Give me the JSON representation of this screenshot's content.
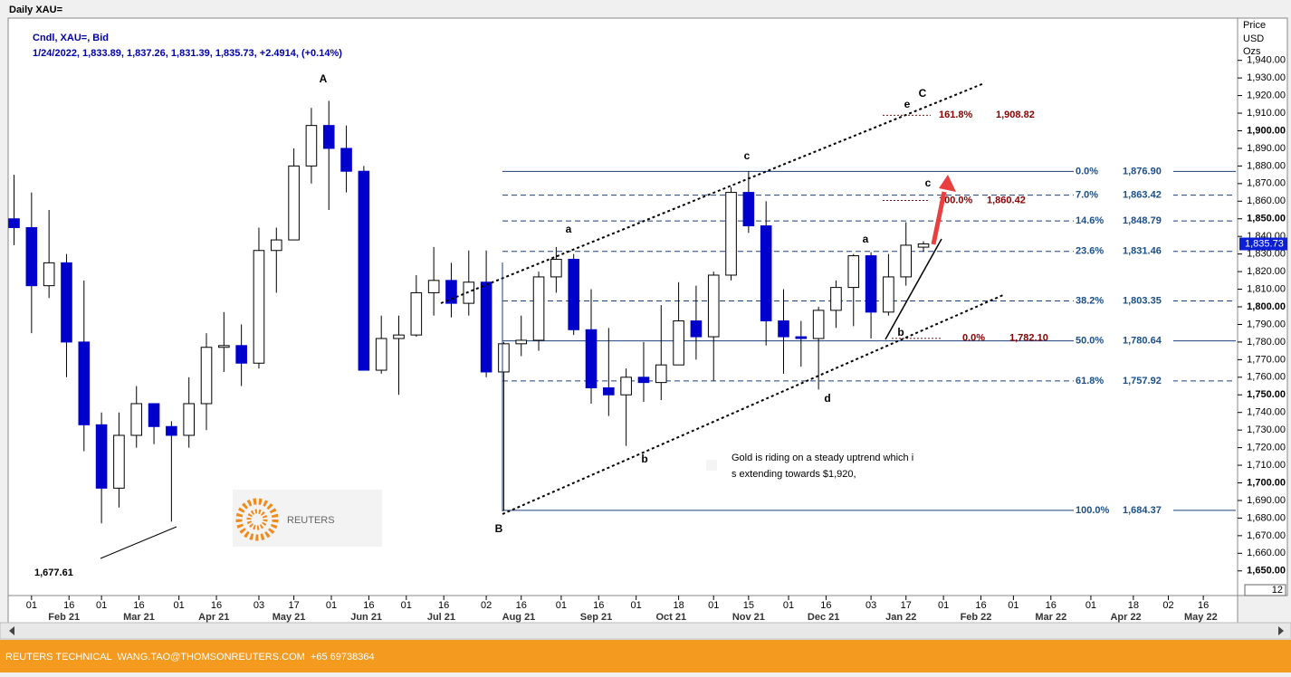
{
  "chart_data": {
    "type": "candlestick",
    "title": "Daily XAU=",
    "subtitle": "Cndl, XAU=, Bid",
    "ohlc_line": "1/24/2022, 1,833.89, 1,837.26, 1,831.39, 1,835.73, +2.4914, (+0.14%)",
    "y_axis_label": [
      "Price",
      "USD",
      "Ozs"
    ],
    "x": [
      "2021-01-25",
      "2021-02-01",
      "2021-02-08",
      "2021-02-15",
      "2021-02-22",
      "2021-03-01",
      "2021-03-08",
      "2021-03-15",
      "2021-03-22",
      "2021-03-29",
      "2021-04-05",
      "2021-04-12",
      "2021-04-19",
      "2021-04-26",
      "2021-05-03",
      "2021-05-10",
      "2021-05-17",
      "2021-05-24",
      "2021-05-31",
      "2021-06-07",
      "2021-06-14",
      "2021-06-21",
      "2021-06-28",
      "2021-07-05",
      "2021-07-12",
      "2021-07-19",
      "2021-07-26",
      "2021-08-02",
      "2021-08-09",
      "2021-08-16",
      "2021-08-23",
      "2021-08-30",
      "2021-09-06",
      "2021-09-13",
      "2021-09-20",
      "2021-09-27",
      "2021-10-04",
      "2021-10-11",
      "2021-10-18",
      "2021-10-25",
      "2021-11-01",
      "2021-11-08",
      "2021-11-15",
      "2021-11-22",
      "2021-11-29",
      "2021-12-06",
      "2021-12-13",
      "2021-12-20",
      "2021-12-27",
      "2022-01-03",
      "2022-01-10",
      "2022-01-17",
      "2022-01-24"
    ],
    "open": [
      1850,
      1845,
      1812,
      1825,
      1780,
      1733,
      1697,
      1727,
      1745,
      1732,
      1727,
      1745,
      1777,
      1778,
      1768,
      1832,
      1838,
      1880,
      1903,
      1890,
      1877,
      1764,
      1782,
      1784,
      1808,
      1815,
      1802,
      1814,
      1763,
      1779,
      1781,
      1817,
      1827,
      1787,
      1754,
      1750,
      1760,
      1757,
      1767,
      1792,
      1783,
      1818,
      1865,
      1846,
      1792,
      1783,
      1782,
      1798,
      1811,
      1829,
      1797,
      1817,
      1833.89
    ],
    "high": [
      1875,
      1865,
      1855,
      1830,
      1815,
      1740,
      1740,
      1755,
      1745,
      1735,
      1760,
      1785,
      1797,
      1790,
      1845,
      1845,
      1890,
      1913,
      1917,
      1903,
      1880,
      1795,
      1795,
      1818,
      1834,
      1825,
      1832,
      1832,
      1780,
      1795,
      1820,
      1834,
      1830,
      1810,
      1788,
      1765,
      1780,
      1801,
      1814,
      1812,
      1820,
      1868,
      1877,
      1860,
      1810,
      1792,
      1800,
      1815,
      1830,
      1831,
      1830,
      1848,
      1837.26
    ],
    "low": [
      1835,
      1785,
      1805,
      1760,
      1718,
      1677,
      1686,
      1720,
      1722,
      1678,
      1720,
      1730,
      1763,
      1755,
      1765,
      1808,
      1838,
      1870,
      1855,
      1865,
      1765,
      1762,
      1750,
      1783,
      1795,
      1794,
      1795,
      1760,
      1684,
      1772,
      1775,
      1808,
      1784,
      1745,
      1738,
      1721,
      1746,
      1747,
      1767,
      1770,
      1758,
      1815,
      1842,
      1778,
      1762,
      1766,
      1753,
      1788,
      1789,
      1782,
      1795,
      1812,
      1831.39
    ],
    "close": [
      1845,
      1812,
      1825,
      1780,
      1733,
      1697,
      1727,
      1745,
      1732,
      1727,
      1745,
      1777,
      1778,
      1768,
      1832,
      1838,
      1880,
      1903,
      1890,
      1877,
      1764,
      1782,
      1784,
      1808,
      1815,
      1802,
      1814,
      1763,
      1779,
      1781,
      1817,
      1827,
      1787,
      1754,
      1750,
      1760,
      1757,
      1767,
      1792,
      1783,
      1818,
      1865,
      1846,
      1792,
      1783,
      1782,
      1798,
      1811,
      1829,
      1797,
      1817,
      1835,
      1835.73
    ],
    "up_color": "#ffffff",
    "down_color": "#0000cc",
    "xlim": [
      "2021-01-23",
      "2022-05-29"
    ],
    "xticks": [
      {
        "value": "2021-02-01",
        "label": "01"
      },
      {
        "value": "2021-02-16",
        "label": "16"
      },
      {
        "value": "2021-03-01",
        "label": "01"
      },
      {
        "value": "2021-03-16",
        "label": "16"
      },
      {
        "value": "2021-04-01",
        "label": "01"
      },
      {
        "value": "2021-04-16",
        "label": "16"
      },
      {
        "value": "2021-05-03",
        "label": "03"
      },
      {
        "value": "2021-05-17",
        "label": "17"
      },
      {
        "value": "2021-06-01",
        "label": "01"
      },
      {
        "value": "2021-06-16",
        "label": "16"
      },
      {
        "value": "2021-07-01",
        "label": "01"
      },
      {
        "value": "2021-07-16",
        "label": "16"
      },
      {
        "value": "2021-08-02",
        "label": "02"
      },
      {
        "value": "2021-08-16",
        "label": "16"
      },
      {
        "value": "2021-09-01",
        "label": "01"
      },
      {
        "value": "2021-09-16",
        "label": "16"
      },
      {
        "value": "2021-10-01",
        "label": "01"
      },
      {
        "value": "2021-10-18",
        "label": "18"
      },
      {
        "value": "2021-11-01",
        "label": "01"
      },
      {
        "value": "2021-11-15",
        "label": "15"
      },
      {
        "value": "2021-12-01",
        "label": "01"
      },
      {
        "value": "2021-12-16",
        "label": "16"
      },
      {
        "value": "2022-01-03",
        "label": "03"
      },
      {
        "value": "2022-01-17",
        "label": "17"
      },
      {
        "value": "2022-02-01",
        "label": "01"
      },
      {
        "value": "2022-02-16",
        "label": "16"
      },
      {
        "value": "2022-03-01",
        "label": "01"
      },
      {
        "value": "2022-03-16",
        "label": "16"
      },
      {
        "value": "2022-04-01",
        "label": "01"
      },
      {
        "value": "2022-04-18",
        "label": "18"
      },
      {
        "value": "2022-05-02",
        "label": "02"
      },
      {
        "value": "2022-05-16",
        "label": "16"
      }
    ],
    "month_labels": [
      {
        "value": "2021-02-14",
        "label": "Feb 21"
      },
      {
        "value": "2021-03-16",
        "label": "Mar 21"
      },
      {
        "value": "2021-04-15",
        "label": "Apr 21"
      },
      {
        "value": "2021-05-15",
        "label": "May 21"
      },
      {
        "value": "2021-06-15",
        "label": "Jun 21"
      },
      {
        "value": "2021-07-15",
        "label": "Jul 21"
      },
      {
        "value": "2021-08-15",
        "label": "Aug 21"
      },
      {
        "value": "2021-09-15",
        "label": "Sep 21"
      },
      {
        "value": "2021-10-15",
        "label": "Oct 21"
      },
      {
        "value": "2021-11-15",
        "label": "Nov 21"
      },
      {
        "value": "2021-12-15",
        "label": "Dec 21"
      },
      {
        "value": "2022-01-15",
        "label": "Jan 22"
      },
      {
        "value": "2022-02-14",
        "label": "Feb 22"
      },
      {
        "value": "2022-03-16",
        "label": "Mar 22"
      },
      {
        "value": "2022-04-15",
        "label": "Apr 22"
      },
      {
        "value": "2022-05-15",
        "label": "May 22"
      }
    ],
    "ylim": [
      1636,
      1964
    ],
    "yticks": [
      {
        "value": 1650,
        "label": "1,650.00"
      },
      {
        "value": 1660,
        "label": "1,660.00"
      },
      {
        "value": 1670,
        "label": "1,670.00"
      },
      {
        "value": 1680,
        "label": "1,680.00"
      },
      {
        "value": 1690,
        "label": "1,690.00"
      },
      {
        "value": 1700,
        "label": "1,700.00"
      },
      {
        "value": 1710,
        "label": "1,710.00"
      },
      {
        "value": 1720,
        "label": "1,720.00"
      },
      {
        "value": 1730,
        "label": "1,730.00"
      },
      {
        "value": 1740,
        "label": "1,740.00"
      },
      {
        "value": 1750,
        "label": "1,750.00"
      },
      {
        "value": 1760,
        "label": "1,760.00"
      },
      {
        "value": 1770,
        "label": "1,770.00"
      },
      {
        "value": 1780,
        "label": "1,780.00"
      },
      {
        "value": 1790,
        "label": "1,790.00"
      },
      {
        "value": 1800,
        "label": "1,800.00"
      },
      {
        "value": 1810,
        "label": "1,810.00"
      },
      {
        "value": 1820,
        "label": "1,820.00"
      },
      {
        "value": 1830,
        "label": "1,830.00"
      },
      {
        "value": 1840,
        "label": "1,840.00"
      },
      {
        "value": 1850,
        "label": "1,850.00"
      },
      {
        "value": 1860,
        "label": "1,860.00"
      },
      {
        "value": 1870,
        "label": "1,870.00"
      },
      {
        "value": 1880,
        "label": "1,880.00"
      },
      {
        "value": 1890,
        "label": "1,890.00"
      },
      {
        "value": 1900,
        "label": "1,900.00"
      },
      {
        "value": 1910,
        "label": "1,910.00"
      },
      {
        "value": 1920,
        "label": "1,920.00"
      },
      {
        "value": 1930,
        "label": "1,930.00"
      },
      {
        "value": 1940,
        "label": "1,940.00"
      }
    ],
    "last_price": {
      "value": 1835.73,
      "label": "1,835.73"
    },
    "fib_levels": [
      {
        "pct": "0.0%",
        "value": 1876.9,
        "label": "1,876.90",
        "solid": true
      },
      {
        "pct": "7.0%",
        "value": 1863.42,
        "label": "1,863.42",
        "solid": false
      },
      {
        "pct": "14.6%",
        "value": 1848.79,
        "label": "1,848.79",
        "solid": false
      },
      {
        "pct": "23.6%",
        "value": 1831.46,
        "label": "1,831.46",
        "solid": false
      },
      {
        "pct": "38.2%",
        "value": 1803.35,
        "label": "1,803.35",
        "solid": false
      },
      {
        "pct": "50.0%",
        "value": 1780.64,
        "label": "1,780.64",
        "solid": true
      },
      {
        "pct": "61.8%",
        "value": 1757.92,
        "label": "1,757.92",
        "solid": false
      },
      {
        "pct": "100.0%",
        "value": 1684.37,
        "label": "1,684.37",
        "solid": true
      }
    ],
    "projections": [
      {
        "pct": "161.8%",
        "value": 1908.82,
        "label": "1,908.82"
      },
      {
        "pct": "100.0%",
        "value": 1860.42,
        "label": "1,860.42"
      },
      {
        "pct": "0.0%",
        "value": 1782.1,
        "label": "1,782.10"
      }
    ],
    "waves": [
      "A",
      "B",
      "C",
      "a",
      "b",
      "c",
      "a",
      "b",
      "c",
      "d",
      "e"
    ],
    "low_label": "1,677.61",
    "comment": [
      "Gold is riding on a steady uptrend which i",
      "s extending towards $1,920,"
    ],
    "logo": "REUTERS",
    "scale_badge": "12",
    "footer": "REUTERS TECHNICAL  WANG.TAO@THOMSONREUTERS.COM  +65 69738364"
  }
}
